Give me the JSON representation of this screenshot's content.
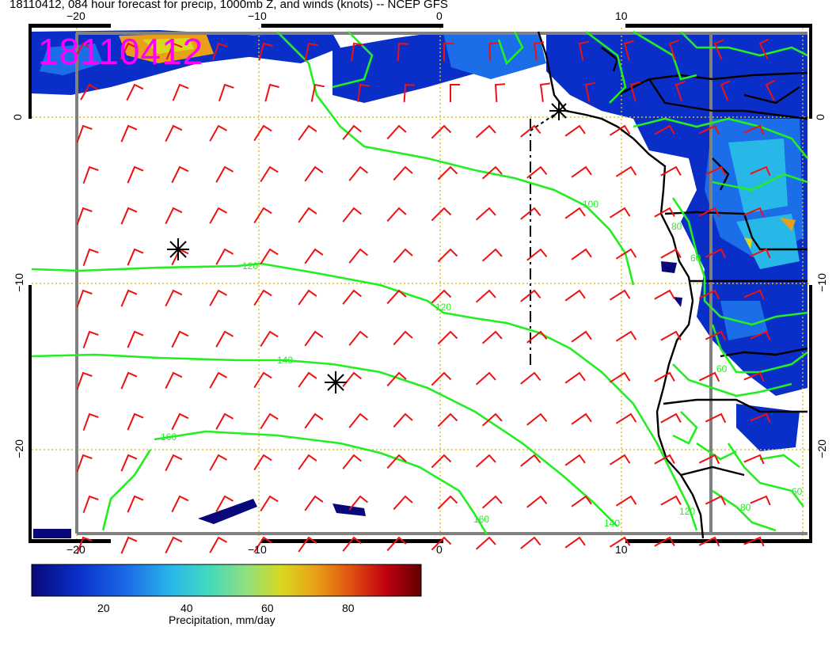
{
  "header": {
    "title": "18110412, 084 hour forecast for precip, 1000mb Z, and winds (knots) -- NCEP GFS",
    "stamp": "18110412"
  },
  "axes": {
    "lon_ticks_top": [
      "−20",
      "−10",
      "0",
      "10"
    ],
    "lon_ticks_bottom": [
      "−20",
      "−10",
      "0",
      "10"
    ],
    "lat_ticks_left": [
      "0",
      "−10",
      "−20"
    ],
    "lat_ticks_right": [
      "0",
      "−10",
      "−20"
    ]
  },
  "contours": {
    "color": "#22ee22",
    "labels": [
      "120",
      "120",
      "140",
      "160",
      "160",
      "140",
      "120",
      "100",
      "80",
      "60",
      "80",
      "60",
      "60"
    ]
  },
  "colorbar": {
    "label": "Precipitation, mm/day",
    "ticks": [
      "20",
      "40",
      "60",
      "80"
    ],
    "colors": [
      "#08087a",
      "#0a2fc8",
      "#1c6ee8",
      "#28b8e8",
      "#40d8c0",
      "#8ee080",
      "#d8d820",
      "#e8a018",
      "#e05010",
      "#c00010",
      "#600000"
    ]
  },
  "colors": {
    "wind_barbs": "#ee1111",
    "coast": "#000000",
    "grid": "#d8c020",
    "frame": "#808080"
  }
}
